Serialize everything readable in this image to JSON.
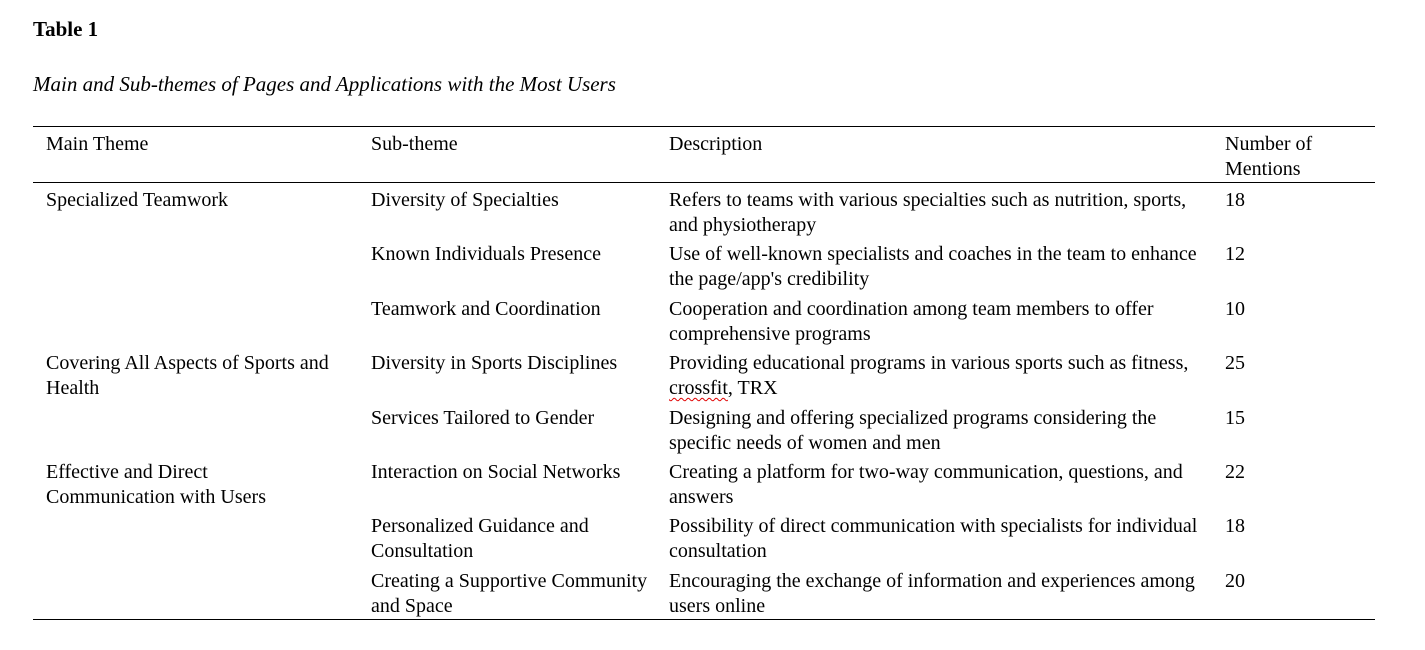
{
  "title": "Table 1",
  "subtitle": "Main and Sub-themes of Pages and Applications with the Most Users",
  "columns": [
    "Main Theme",
    "Sub-theme",
    "Description",
    "Number of Mentions"
  ],
  "rows": [
    {
      "main": "Specialized Teamwork",
      "sub": "Diversity of Specialties",
      "desc": "Refers to teams with various specialties such as nutrition, sports, and physiotherapy",
      "count": "18"
    },
    {
      "main": "",
      "sub": "Known Individuals Presence",
      "desc": "Use of well-known specialists and coaches in the team to enhance the page/app's credibility",
      "count": "12"
    },
    {
      "main": "",
      "sub": "Teamwork and Coordination",
      "desc": "Cooperation and coordination among team members to offer comprehensive programs",
      "count": "10"
    },
    {
      "main": "Covering All Aspects of Sports and Health",
      "sub": "Diversity in Sports Disciplines",
      "desc": "Providing educational programs in various sports such as fitness, crossfit, TRX",
      "count": "25"
    },
    {
      "main": "",
      "sub": "Services Tailored to Gender",
      "desc": "Designing and offering specialized programs considering the specific needs of women and men",
      "count": "15"
    },
    {
      "main": "Effective and Direct Communication with Users",
      "sub": "Interaction on Social Networks",
      "desc": "Creating a platform for two-way communication, questions, and answers",
      "count": "22"
    },
    {
      "main": "",
      "sub": "Personalized Guidance and Consultation",
      "desc": "Possibility of direct communication with specialists for individual consultation",
      "count": "18"
    },
    {
      "main": "",
      "sub": "Creating a Supportive Community and Space",
      "desc": "Encouraging the exchange of information and experiences among users online",
      "count": "20"
    }
  ]
}
